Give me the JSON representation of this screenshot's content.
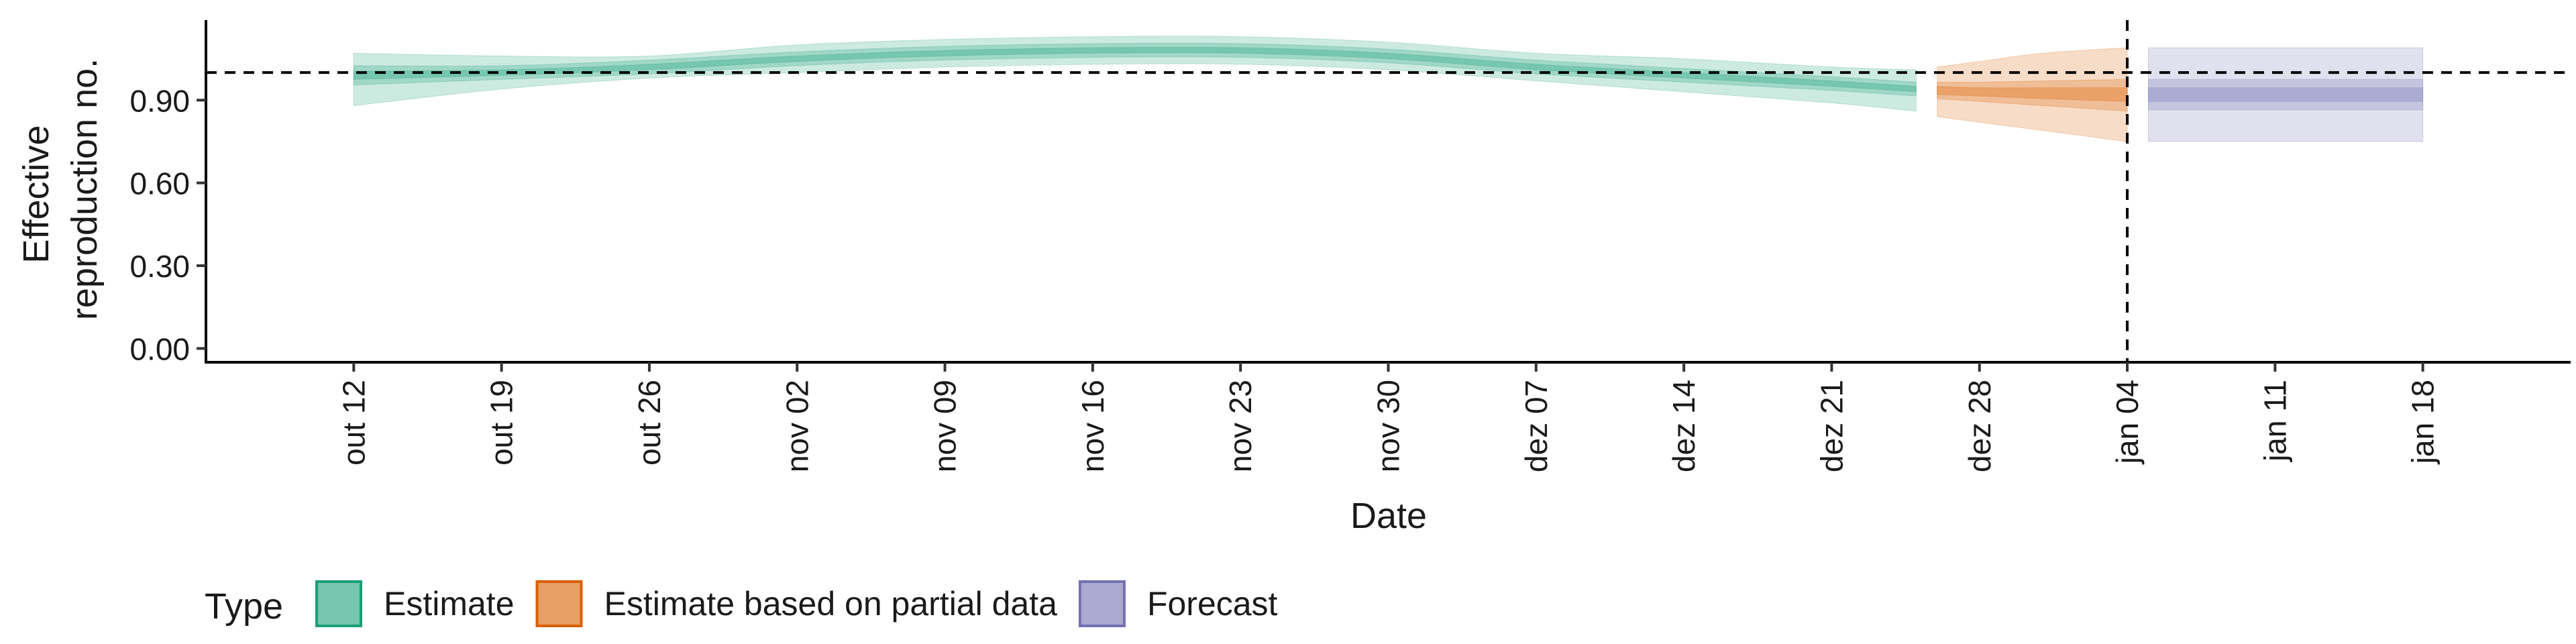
{
  "chart_data": {
    "type": "area",
    "title": "",
    "xlabel": "Date",
    "ylabel_lines": [
      "Effective",
      "reproduction no."
    ],
    "x_ticks": [
      "out 12",
      "out 19",
      "out 26",
      "nov 02",
      "nov 09",
      "nov 16",
      "nov 23",
      "nov 30",
      "dez 07",
      "dez 14",
      "dez 21",
      "dez 28",
      "jan 04",
      "jan 11",
      "jan 18"
    ],
    "y_ticks": [
      "0.00",
      "0.30",
      "0.60",
      "0.90"
    ],
    "ylim": [
      -0.05,
      1.19
    ],
    "x_range": [
      "2020-10-05",
      "2021-01-25"
    ],
    "reference_line_y": 1.0,
    "vertical_line_x": "2021-01-04",
    "grid": false,
    "legend": {
      "position": "bottom-left",
      "title": "Type",
      "items": [
        {
          "label": "Estimate",
          "color": "#1b9e77"
        },
        {
          "label": "Estimate based on partial data",
          "color": "#d95f02"
        },
        {
          "label": "Forecast",
          "color": "#7570b3"
        }
      ]
    },
    "series": [
      {
        "name": "Estimate",
        "color": "#1b9e77",
        "points": [
          {
            "x": "2020-10-12",
            "median": 0.99,
            "lower_20": 0.975,
            "upper_20": 1.005,
            "lower_50": 0.955,
            "upper_50": 1.025,
            "lower_90": 0.88,
            "upper_90": 1.07
          },
          {
            "x": "2020-10-19",
            "median": 1.0,
            "lower_20": 0.99,
            "upper_20": 1.01,
            "lower_50": 0.975,
            "upper_50": 1.025,
            "lower_90": 0.94,
            "upper_90": 1.06
          },
          {
            "x": "2020-10-26",
            "median": 1.02,
            "lower_20": 1.01,
            "upper_20": 1.03,
            "lower_50": 0.995,
            "upper_50": 1.045,
            "lower_90": 0.98,
            "upper_90": 1.06
          },
          {
            "x": "2020-11-02",
            "median": 1.05,
            "lower_20": 1.04,
            "upper_20": 1.06,
            "lower_50": 1.025,
            "upper_50": 1.075,
            "lower_90": 1.0,
            "upper_90": 1.1
          },
          {
            "x": "2020-11-09",
            "median": 1.07,
            "lower_20": 1.06,
            "upper_20": 1.08,
            "lower_50": 1.045,
            "upper_50": 1.095,
            "lower_90": 1.02,
            "upper_90": 1.12
          },
          {
            "x": "2020-11-16",
            "median": 1.08,
            "lower_20": 1.07,
            "upper_20": 1.09,
            "lower_50": 1.055,
            "upper_50": 1.105,
            "lower_90": 1.03,
            "upper_90": 1.13
          },
          {
            "x": "2020-11-23",
            "median": 1.08,
            "lower_20": 1.07,
            "upper_20": 1.09,
            "lower_50": 1.055,
            "upper_50": 1.105,
            "lower_90": 1.03,
            "upper_90": 1.13
          },
          {
            "x": "2020-11-30",
            "median": 1.06,
            "lower_20": 1.05,
            "upper_20": 1.07,
            "lower_50": 1.035,
            "upper_50": 1.085,
            "lower_90": 1.01,
            "upper_90": 1.11
          },
          {
            "x": "2020-12-07",
            "median": 1.02,
            "lower_20": 1.01,
            "upper_20": 1.03,
            "lower_50": 0.995,
            "upper_50": 1.045,
            "lower_90": 0.97,
            "upper_90": 1.07
          },
          {
            "x": "2020-12-14",
            "median": 0.99,
            "lower_20": 0.98,
            "upper_20": 1.0,
            "lower_50": 0.965,
            "upper_50": 1.015,
            "lower_90": 0.93,
            "upper_90": 1.05
          },
          {
            "x": "2020-12-21",
            "median": 0.96,
            "lower_20": 0.95,
            "upper_20": 0.97,
            "lower_50": 0.935,
            "upper_50": 0.985,
            "lower_90": 0.89,
            "upper_90": 1.02
          },
          {
            "x": "2020-12-25",
            "median": 0.94,
            "lower_20": 0.93,
            "upper_20": 0.95,
            "lower_50": 0.915,
            "upper_50": 0.965,
            "lower_90": 0.86,
            "upper_90": 1.01
          }
        ]
      },
      {
        "name": "Estimate based on partial data",
        "color": "#d95f02",
        "points": [
          {
            "x": "2020-12-26",
            "median": 0.935,
            "lower_20": 0.92,
            "upper_20": 0.95,
            "lower_50": 0.905,
            "upper_50": 0.965,
            "lower_90": 0.84,
            "upper_90": 1.02
          },
          {
            "x": "2020-12-28",
            "median": 0.93,
            "lower_20": 0.915,
            "upper_20": 0.945,
            "lower_50": 0.895,
            "upper_50": 0.965,
            "lower_90": 0.82,
            "upper_90": 1.04
          },
          {
            "x": "2020-12-31",
            "median": 0.925,
            "lower_20": 0.905,
            "upper_20": 0.945,
            "lower_50": 0.88,
            "upper_50": 0.97,
            "lower_90": 0.79,
            "upper_90": 1.07
          },
          {
            "x": "2021-01-04",
            "median": 0.92,
            "lower_20": 0.895,
            "upper_20": 0.945,
            "lower_50": 0.86,
            "upper_50": 0.975,
            "lower_90": 0.75,
            "upper_90": 1.09
          }
        ]
      },
      {
        "name": "Forecast",
        "color": "#7570b3",
        "points": [
          {
            "x": "2021-01-05",
            "median": 0.92,
            "lower_20": 0.895,
            "upper_20": 0.945,
            "lower_50": 0.865,
            "upper_50": 0.975,
            "lower_90": 0.75,
            "upper_90": 1.09
          },
          {
            "x": "2021-01-18",
            "median": 0.92,
            "lower_20": 0.895,
            "upper_20": 0.945,
            "lower_50": 0.865,
            "upper_50": 0.975,
            "lower_90": 0.75,
            "upper_90": 1.09
          }
        ]
      }
    ]
  }
}
